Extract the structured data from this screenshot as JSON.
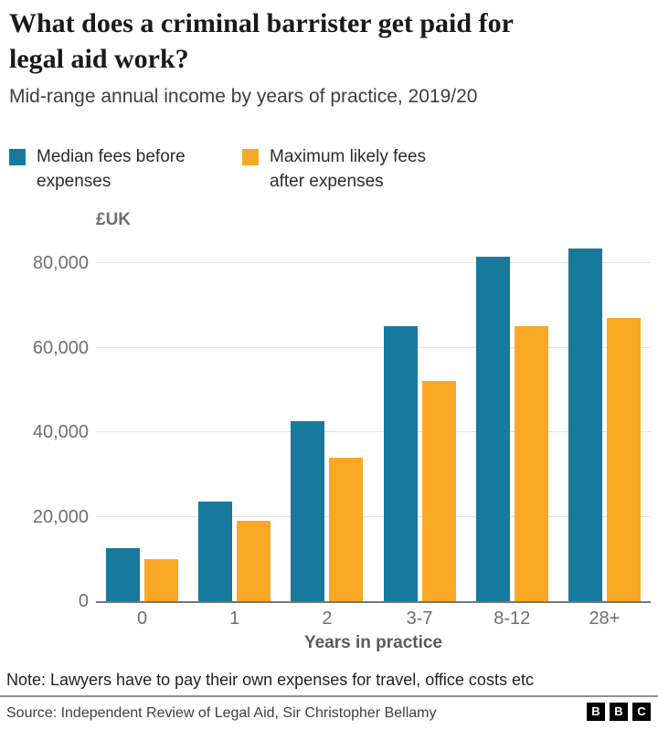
{
  "header": {
    "title_lines": [
      "What does a criminal barrister get paid for",
      "legal aid work?"
    ],
    "subtitle": "Mid-range annual income by years of practice, 2019/20"
  },
  "legend": [
    {
      "label": "Median fees before expenses",
      "color": "#17799C"
    },
    {
      "label": "Maximum likely fees after expenses",
      "color": "#F9A826"
    }
  ],
  "chart_data": {
    "type": "bar",
    "unit_label": "£UK",
    "categories": [
      "0",
      "1",
      "2",
      "3-7",
      "8-12",
      "28+"
    ],
    "series": [
      {
        "name": "Median fees before expenses",
        "color": "#17799C",
        "values": [
          12500,
          23500,
          42500,
          65000,
          81500,
          83500
        ]
      },
      {
        "name": "Maximum likely fees after expenses",
        "color": "#F9A826",
        "values": [
          10000,
          19000,
          34000,
          52000,
          65000,
          67000
        ]
      }
    ],
    "xlabel": "Years in practice",
    "y_ticks": [
      0,
      20000,
      40000,
      60000,
      80000
    ],
    "y_tick_labels": [
      "0",
      "20,000",
      "40,000",
      "60,000",
      "80,000"
    ],
    "ylim": [
      0,
      87000
    ],
    "grid": true,
    "legend_position": "top",
    "gridline_color": "#e2e2e2",
    "baseline_color": "#767676"
  },
  "note": "Note: Lawyers have to pay their own expenses for travel, office costs etc",
  "footer": {
    "source": "Source: Independent Review of Legal Aid, Sir Christopher Bellamy",
    "logo_letters": [
      "B",
      "B",
      "C"
    ]
  }
}
